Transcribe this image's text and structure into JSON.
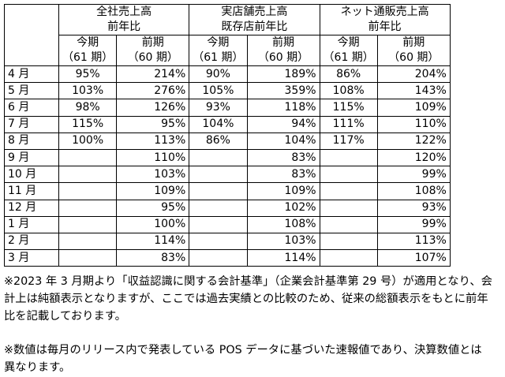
{
  "groups": [
    {
      "line1": "全社売上高",
      "line2": "前年比"
    },
    {
      "line1": "実店舗売上高",
      "line2": "既存店前年比"
    },
    {
      "line1": "ネット通販売上高",
      "line2": "前年比"
    }
  ],
  "sub_headers": {
    "current": {
      "line1": "今期",
      "line2": "（61 期）"
    },
    "previous": {
      "line1": "前期",
      "line2": "（60 期）"
    }
  },
  "rows": [
    {
      "month": "4 月",
      "values": [
        "95%",
        "214%",
        "90%",
        "189%",
        "86%",
        "204%"
      ]
    },
    {
      "month": "5 月",
      "values": [
        "103%",
        "276%",
        "105%",
        "359%",
        "108%",
        "143%"
      ]
    },
    {
      "month": "6 月",
      "values": [
        "98%",
        "126%",
        "93%",
        "118%",
        "115%",
        "109%"
      ]
    },
    {
      "month": "7 月",
      "values": [
        "115%",
        "95%",
        "104%",
        "94%",
        "111%",
        "110%"
      ]
    },
    {
      "month": "8 月",
      "values": [
        "100%",
        "113%",
        "86%",
        "104%",
        "117%",
        "122%"
      ]
    },
    {
      "month": "9 月",
      "values": [
        "",
        "110%",
        "",
        "83%",
        "",
        "120%"
      ]
    },
    {
      "month": "10 月",
      "values": [
        "",
        "103%",
        "",
        "83%",
        "",
        "99%"
      ]
    },
    {
      "month": "11 月",
      "values": [
        "",
        "109%",
        "",
        "109%",
        "",
        "108%"
      ]
    },
    {
      "month": "12 月",
      "values": [
        "",
        "95%",
        "",
        "102%",
        "",
        "93%"
      ]
    },
    {
      "month": "1 月",
      "values": [
        "",
        "100%",
        "",
        "108%",
        "",
        "99%"
      ]
    },
    {
      "month": "2 月",
      "values": [
        "",
        "114%",
        "",
        "103%",
        "",
        "113%"
      ]
    },
    {
      "month": "3 月",
      "values": [
        "",
        "83%",
        "",
        "114%",
        "",
        "107%"
      ]
    }
  ],
  "notes": {
    "note1_line1": "※2023 年 3 月期より「収益認識に関する会計基準」（企業会計基準第 29 号）が適用となり、会",
    "note1_line2": "計上は純額表示となりますが、ここでは過去実績との比較のため、従来の総額表示をもとに前年",
    "note1_line3": "比を記載しております。",
    "note2_line1": "※数値は毎月のリリース内で発表している POS データに基づいた速報値であり、決算数値とは",
    "note2_line2": "異なります。"
  }
}
